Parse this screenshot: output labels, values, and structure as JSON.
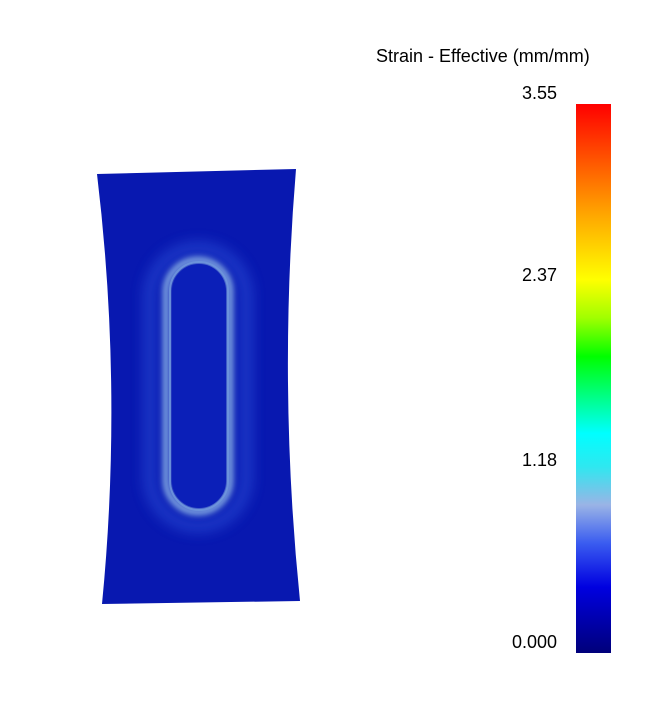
{
  "legend": {
    "title": "Strain - Effective (mm/mm)",
    "ticks": [
      "3.55",
      "2.37",
      "1.18",
      "0.000"
    ],
    "colormap": [
      "#00007a",
      "#0000ff",
      "#7fb0e6",
      "#00ffff",
      "#00ff00",
      "#ffff00",
      "#ff8c00",
      "#ff0000"
    ]
  },
  "colors": {
    "specimen_fill": "#0818b0",
    "hole_rim": "#8fb8e8",
    "hole_glow": "#3f62d6"
  }
}
